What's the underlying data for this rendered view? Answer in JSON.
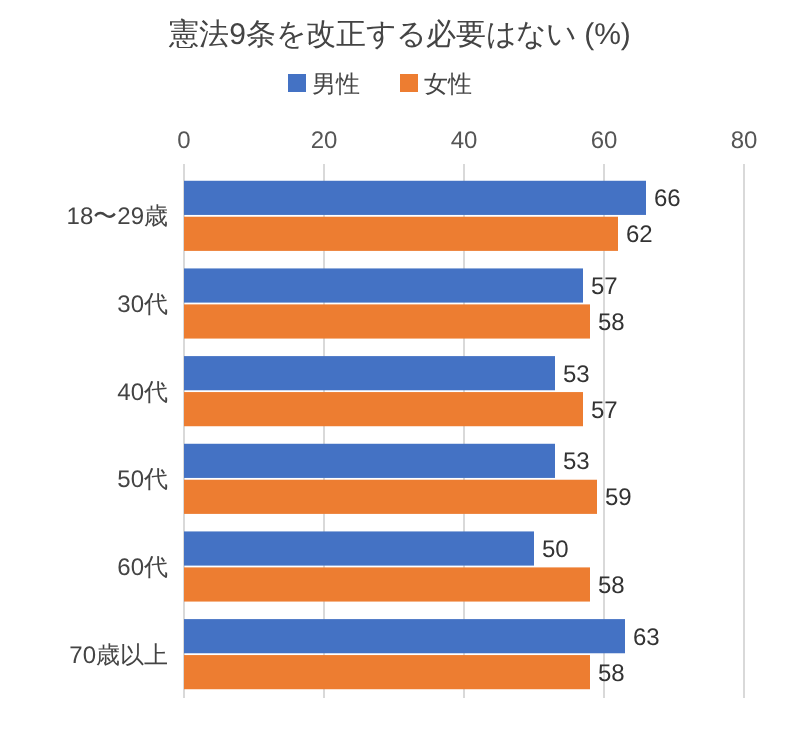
{
  "chart_data": {
    "type": "bar",
    "orientation": "horizontal",
    "title": "憲法9条を改正する必要はない (%)",
    "categories": [
      "18〜29歳",
      "30代",
      "40代",
      "50代",
      "60代",
      "70歳以上"
    ],
    "series": [
      {
        "name": "男性",
        "color": "#4472c4",
        "values": [
          66,
          57,
          53,
          53,
          50,
          63
        ]
      },
      {
        "name": "女性",
        "color": "#ed7d31",
        "values": [
          62,
          58,
          57,
          59,
          58,
          58
        ]
      }
    ],
    "xlim": [
      0,
      80
    ],
    "xticks": [
      0,
      20,
      40,
      60,
      80
    ],
    "grid": "x",
    "legend": "top",
    "data_labels": true
  }
}
